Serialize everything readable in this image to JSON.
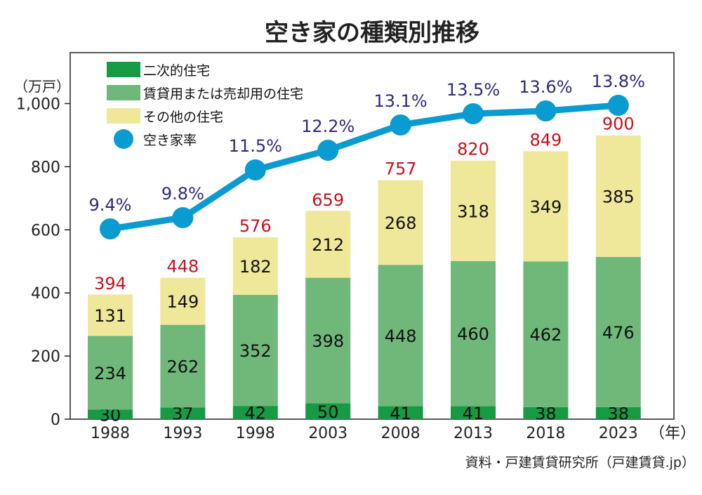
{
  "chart_data": {
    "type": "bar",
    "title": "空き家の種類別推移",
    "ylabel": "（万戸）",
    "xlabel": "（年）",
    "ylim": [
      0,
      1000
    ],
    "yticks": [
      "0",
      "200",
      "400",
      "600",
      "800",
      "1,000"
    ],
    "categories": [
      "1988",
      "1993",
      "1998",
      "2003",
      "2008",
      "2013",
      "2018",
      "2023"
    ],
    "series": [
      {
        "name": "二次的住宅",
        "color": "#179a44",
        "values": [
          30,
          37,
          42,
          50,
          41,
          41,
          38,
          38
        ]
      },
      {
        "name": "賃貸用または売却用の住宅",
        "color": "#6fb87a",
        "values": [
          234,
          262,
          352,
          398,
          448,
          460,
          462,
          476
        ]
      },
      {
        "name": "その他の住宅",
        "color": "#efe79a",
        "values": [
          131,
          149,
          182,
          212,
          268,
          318,
          349,
          385
        ]
      }
    ],
    "totals": [
      394,
      448,
      576,
      659,
      757,
      820,
      849,
      900
    ],
    "line_series": {
      "name": "空き家率",
      "color": "#0a9bd0",
      "values": [
        9.4,
        9.8,
        11.5,
        12.2,
        13.1,
        13.5,
        13.6,
        13.8
      ],
      "labels": [
        "9.4%",
        "9.8%",
        "11.5%",
        "12.2%",
        "13.1%",
        "13.5%",
        "13.6%",
        "13.8%"
      ]
    },
    "legend_position": "top-left",
    "grid": false,
    "source": "資料・戸建賃貸研究所（戸建賃貸.jp）"
  }
}
